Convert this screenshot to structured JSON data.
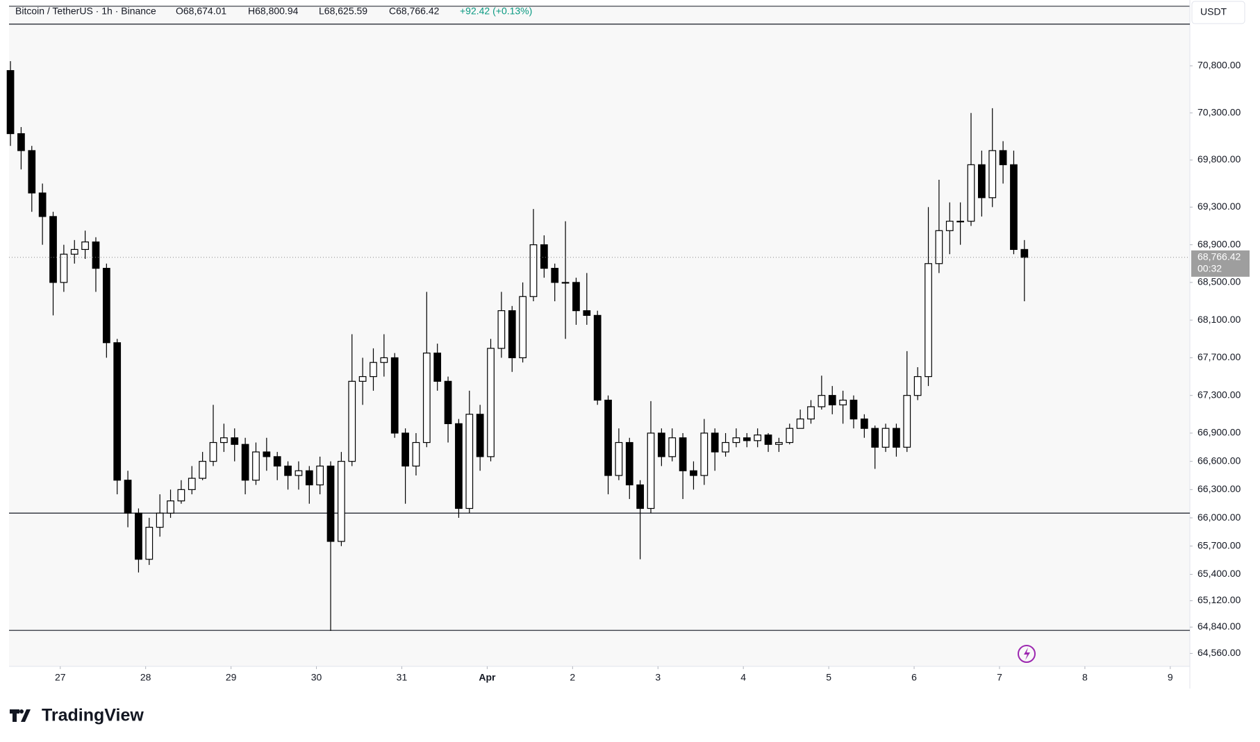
{
  "chart_data": {
    "type": "candlestick",
    "header": {
      "symbol": "Bitcoin / TetherUS · 1h · Binance",
      "open": "O68,674.01",
      "high": "H68,800.94",
      "low": "L68,625.59",
      "close": "C68,766.42",
      "change": "+92.42 (+0.13%)"
    },
    "currency": "USDT",
    "countdown": "00:32",
    "brand": "TradingView",
    "last_price": {
      "value": 68766.42,
      "label": "68,766.42"
    },
    "levels": [
      71243,
      66050,
      64805
    ],
    "xlim": [
      -14.4,
      317.5
    ],
    "xticks": [
      {
        "value": 0,
        "label": "27"
      },
      {
        "value": 24,
        "label": "28"
      },
      {
        "value": 48,
        "label": "29"
      },
      {
        "value": 72,
        "label": "30"
      },
      {
        "value": 96,
        "label": "31"
      },
      {
        "value": 120,
        "label": "Apr"
      },
      {
        "value": 144,
        "label": "2"
      },
      {
        "value": 168,
        "label": "3"
      },
      {
        "value": 192,
        "label": "4"
      },
      {
        "value": 216,
        "label": "5"
      },
      {
        "value": 240,
        "label": "6"
      },
      {
        "value": 264,
        "label": "7"
      },
      {
        "value": 288,
        "label": "8"
      },
      {
        "value": 312,
        "label": "9"
      }
    ],
    "ylim": [
      64423,
      71433
    ],
    "yticks": [
      {
        "value": 70800,
        "label": "70,800.00"
      },
      {
        "value": 70300,
        "label": "70,300.00"
      },
      {
        "value": 69800,
        "label": "69,800.00"
      },
      {
        "value": 69300,
        "label": "69,300.00"
      },
      {
        "value": 68900,
        "label": "68,900.00"
      },
      {
        "value": 68500,
        "label": "68,500.00"
      },
      {
        "value": 68100,
        "label": "68,100.00"
      },
      {
        "value": 67700,
        "label": "67,700.00"
      },
      {
        "value": 67300,
        "label": "67,300.00"
      },
      {
        "value": 66900,
        "label": "66,900.00"
      },
      {
        "value": 66600,
        "label": "66,600.00"
      },
      {
        "value": 66300,
        "label": "66,300.00"
      },
      {
        "value": 66000,
        "label": "66,000.00"
      },
      {
        "value": 65700,
        "label": "65,700.00"
      },
      {
        "value": 65400,
        "label": "65,400.00"
      },
      {
        "value": 65120,
        "label": "65,120.00"
      },
      {
        "value": 64840,
        "label": "64,840.00"
      },
      {
        "value": 64560,
        "label": "64,560.00"
      }
    ],
    "up_color": "#ffffff",
    "down_color": "#000000",
    "wick_color": "#000000",
    "x": [
      -14,
      -11,
      -8,
      -5,
      -2,
      1,
      4,
      7,
      10,
      13,
      16,
      19,
      22,
      25,
      28,
      31,
      34,
      37,
      40,
      43,
      46,
      49,
      52,
      55,
      58,
      61,
      64,
      67,
      70,
      73,
      76,
      79,
      82,
      85,
      88,
      91,
      94,
      97,
      100,
      103,
      106,
      109,
      112,
      115,
      118,
      121,
      124,
      127,
      130,
      133,
      136,
      139,
      142,
      145,
      148,
      151,
      154,
      157,
      160,
      163,
      166,
      169,
      172,
      175,
      178,
      181,
      184,
      187,
      190,
      193,
      196,
      199,
      202,
      205,
      208,
      211,
      214,
      217,
      220,
      223,
      226,
      229,
      232,
      235,
      238,
      241,
      244,
      247,
      250,
      253,
      256,
      259,
      262,
      265,
      268,
      271
    ],
    "open": [
      70750,
      70080,
      69900,
      69450,
      69200,
      68500,
      68800,
      68850,
      68930,
      68650,
      67860,
      66400,
      66050,
      65560,
      65900,
      66050,
      66180,
      66300,
      66420,
      66600,
      66800,
      66850,
      66780,
      66400,
      66700,
      66650,
      66550,
      66450,
      66500,
      66350,
      66550,
      65750,
      66600,
      67450,
      67500,
      67650,
      67700,
      66900,
      66550,
      66800,
      67750,
      67450,
      67000,
      66100,
      67100,
      66650,
      67800,
      68200,
      67700,
      68350,
      68900,
      68650,
      68500,
      68500,
      68200,
      68150,
      67250,
      66450,
      66800,
      66350,
      66100,
      66900,
      66650,
      66850,
      66500,
      66450,
      66900,
      66700,
      66800,
      66850,
      66820,
      66880,
      66780,
      66800,
      66950,
      67050,
      67180,
      67300,
      67200,
      67250,
      67050,
      66950,
      66750,
      66950,
      66750,
      67300,
      67500,
      68700,
      69050,
      69150,
      69150,
      69750,
      69400,
      69900,
      69750,
      68850
    ],
    "high": [
      70850,
      70150,
      69950,
      69550,
      69250,
      68900,
      68950,
      69050,
      68980,
      68700,
      67900,
      66500,
      66100,
      66000,
      66250,
      66300,
      66400,
      66550,
      66700,
      67200,
      67000,
      66950,
      66850,
      66800,
      66850,
      66700,
      66600,
      66600,
      66550,
      66650,
      66600,
      66700,
      67950,
      67700,
      67800,
      67950,
      67750,
      66950,
      66900,
      68400,
      67850,
      67500,
      67050,
      67350,
      67200,
      67900,
      68400,
      68250,
      68500,
      69280,
      69000,
      68700,
      69150,
      68550,
      68600,
      68200,
      67300,
      66950,
      66850,
      66400,
      67240,
      66950,
      66950,
      66900,
      66600,
      67050,
      66950,
      66900,
      66950,
      66900,
      66950,
      66900,
      66850,
      67000,
      67150,
      67250,
      67510,
      67400,
      67350,
      67300,
      67100,
      66980,
      67000,
      67000,
      67770,
      67600,
      69300,
      69590,
      69350,
      69350,
      70300,
      69900,
      70350,
      70000,
      69900,
      68950
    ],
    "low": [
      69950,
      69700,
      69250,
      68900,
      68150,
      68400,
      68700,
      68750,
      68400,
      67700,
      66250,
      65900,
      65420,
      65500,
      65800,
      66000,
      66150,
      66250,
      66400,
      66550,
      66700,
      66600,
      66250,
      66350,
      66500,
      66400,
      66300,
      66300,
      66150,
      66250,
      64800,
      65700,
      66550,
      67200,
      67350,
      67500,
      66850,
      66150,
      66450,
      66750,
      67350,
      66800,
      66000,
      66050,
      66500,
      66600,
      67700,
      67550,
      67650,
      68300,
      68550,
      68300,
      67900,
      68050,
      68050,
      67200,
      66250,
      66400,
      66200,
      65560,
      66050,
      66550,
      66600,
      66200,
      66300,
      66350,
      66500,
      66650,
      66750,
      66750,
      66750,
      66700,
      66700,
      66780,
      66950,
      67000,
      67150,
      67100,
      67000,
      66950,
      66850,
      66520,
      66700,
      66650,
      66700,
      67250,
      67400,
      68600,
      68800,
      68900,
      69100,
      69200,
      69300,
      69550,
      68800,
      68300
    ],
    "close": [
      70080,
      69900,
      69450,
      69200,
      68500,
      68800,
      68850,
      68930,
      68650,
      67860,
      66400,
      66050,
      65560,
      65900,
      66050,
      66180,
      66300,
      66420,
      66600,
      66800,
      66850,
      66780,
      66400,
      66700,
      66650,
      66550,
      66450,
      66500,
      66350,
      66550,
      65750,
      66600,
      67450,
      67500,
      67650,
      67700,
      66900,
      66550,
      66800,
      67750,
      67450,
      67000,
      66100,
      67100,
      66650,
      67800,
      68200,
      67700,
      68350,
      68900,
      68650,
      68500,
      68500,
      68200,
      68150,
      67250,
      66450,
      66800,
      66350,
      66100,
      66900,
      66650,
      66850,
      66500,
      66450,
      66900,
      66700,
      66800,
      66850,
      66820,
      66880,
      66780,
      66800,
      66950,
      67050,
      67180,
      67300,
      67200,
      67250,
      67050,
      66950,
      66750,
      66950,
      66750,
      67300,
      67500,
      68700,
      69050,
      69150,
      69150,
      69750,
      69400,
      69900,
      69750,
      68850,
      68766.42
    ]
  }
}
